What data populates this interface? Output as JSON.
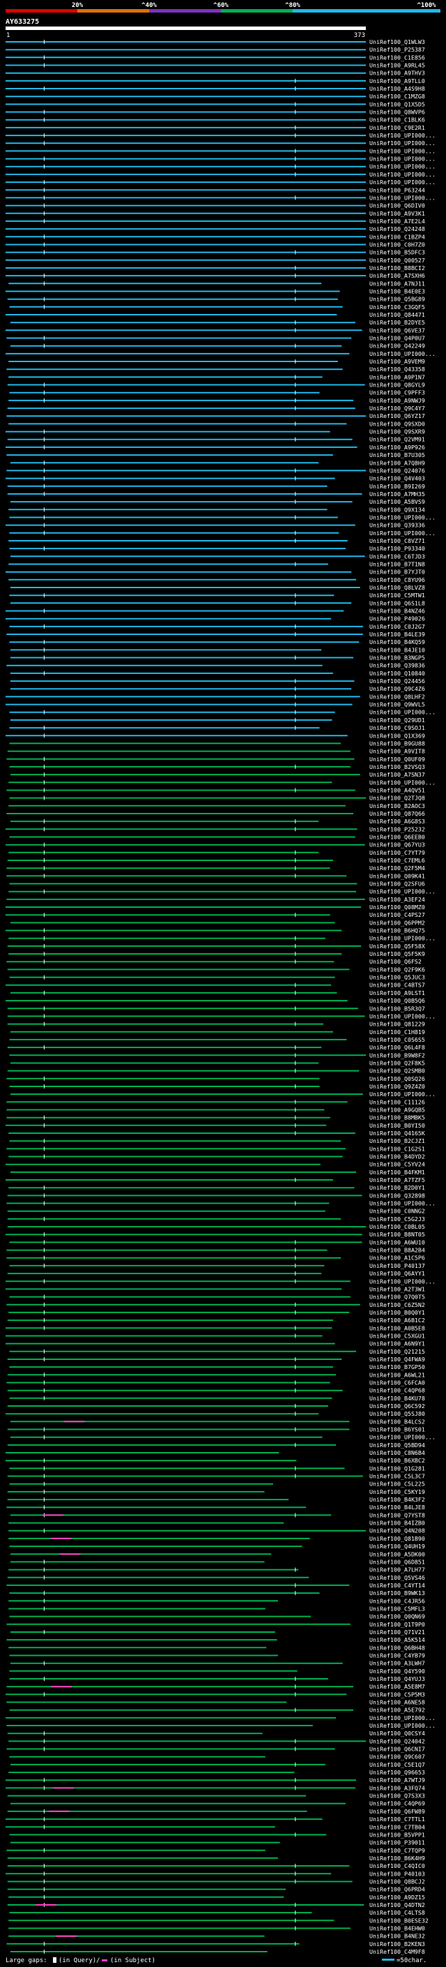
{
  "chart_data": {
    "type": "alignment-overview",
    "title": "AY633275",
    "identity_scale": {
      "labels": [
        "20%",
        "^40%",
        "^60%",
        "^80%",
        "^100%"
      ],
      "colors": [
        "#e00000",
        "#e07000",
        "#8030c0",
        "#00b050",
        "#20b8e8"
      ]
    },
    "query_range": {
      "start": "1",
      "end": "373"
    },
    "query_length": 373,
    "subject_ids": [
      "UniRef100_Q1WLW3",
      "UniRef100_P25387",
      "UniRef100_C1E856",
      "UniRef100_A9RL45",
      "UniRef100_A9THV3",
      "UniRef100_A9TLL0",
      "UniRef100_A4S9H8",
      "UniRef100_C1MZG8",
      "UniRef100_Q1X5D5",
      "UniRef100_Q8WVP6",
      "UniRef100_C1BLK6",
      "UniRef100_C9E2R1",
      "UniRef100_UPI000...",
      "UniRef100_UPI000...",
      "UniRef100_UPI000...",
      "UniRef100_UPI000...",
      "UniRef100_UPI000...",
      "UniRef100_UPI000...",
      "UniRef100_UPI000...",
      "UniRef100_P63244",
      "UniRef100_UPI000...",
      "UniRef100_Q6DIV0",
      "UniRef100_A9V3K1",
      "UniRef100_A7E2L4",
      "UniRef100_Q24248",
      "UniRef100_C1BZP4",
      "UniRef100_C0H7Z0",
      "UniRef100_B5DFC3",
      "UniRef100_Q00527",
      "UniRef100_B8BCI2",
      "UniRef100_A7SXH6",
      "UniRef100_A7NJ11",
      "UniRef100_B4E0E3",
      "UniRef100_Q5BG89",
      "UniRef100_C3GQF5",
      "UniRef100_Q84471",
      "UniRef100_B2DYE5",
      "UniRef100_Q6VE37",
      "UniRef100_Q4P0U7",
      "UniRef100_Q42249",
      "UniRef100_UPI000...",
      "UniRef100_A9VEM9",
      "UniRef100_Q43358",
      "UniRef100_A9P1N7",
      "UniRef100_Q8GYL9",
      "UniRef100_C9PFF3",
      "UniRef100_A9NWJ9",
      "UniRef100_Q9C4Y7",
      "UniRef100_Q6YZ17",
      "UniRef100_Q9SXD0",
      "UniRef100_Q9SXR9",
      "UniRef100_Q2VM91",
      "UniRef100_A9P926",
      "UniRef100_B7U305",
      "UniRef100_A7Q8H9",
      "UniRef100_Q24076",
      "UniRef100_Q4V403",
      "UniRef100_B9I269",
      "UniRef100_A7MH35",
      "UniRef100_A5BVS9",
      "UniRef100_Q9X134",
      "UniRef100_UPI000...",
      "UniRef100_Q39336",
      "UniRef100_UPI000...",
      "UniRef100_C8VZ71",
      "UniRef100_P93340",
      "UniRef100_C6TJD3",
      "UniRef100_B7T1N8",
      "UniRef100_B7YJT0",
      "UniRef100_C8YU96",
      "UniRef100_Q8LVZ8",
      "UniRef100_C5MTW1",
      "UniRef100_Q6S1L8",
      "UniRef100_B4NZ46",
      "UniRef100_P49026",
      "UniRef100_C0J2G7",
      "UniRef100_B4LE39",
      "UniRef100_B4KQ59",
      "UniRef100_B4JE10",
      "UniRef100_B3NGP5",
      "UniRef100_Q39836",
      "UniRef100_Q10840",
      "UniRef100_Q24456",
      "UniRef100_Q9C4Z6",
      "UniRef100_Q8LHF2",
      "UniRef100_Q9WVL5",
      "UniRef100_UPI000...",
      "UniRef100_Q29UD1",
      "UniRef100_C9SOJ1",
      "UniRef100_Q1X369",
      "UniRef100_B9GU88",
      "UniRef100_A9VIT8",
      "UniRef100_Q0UF09",
      "UniRef100_B2VSQ3",
      "UniRef100_A7SN37",
      "UniRef100_UPI000...",
      "UniRef100_A4QV51",
      "UniRef100_Q2TJQ8",
      "UniRef100_B2AOC3",
      "UniRef100_Q87Q66",
      "UniRef100_A6G8S3",
      "UniRef100_P25232",
      "UniRef100_Q6EEB0",
      "UniRef100_Q67YU3",
      "UniRef100_C7YT79",
      "UniRef100_C7EML6",
      "UniRef100_Q2F5M4",
      "UniRef100_Q09K41",
      "UniRef100_Q2SFU6",
      "UniRef100_UPI000...",
      "UniRef100_A3EF24",
      "UniRef100_Q08MZ0",
      "UniRef100_C4PS27",
      "UniRef100_Q6PPM2",
      "UniRef100_B6HQ75",
      "UniRef100_UPI000...",
      "UniRef100_Q5F58X",
      "UniRef100_Q5F5K9",
      "UniRef100_Q6FS2",
      "UniRef100_Q2F9K6",
      "UniRef100_Q5JUC3",
      "UniRef100_C4BTS7",
      "UniRef100_A9LST1",
      "UniRef100_Q0B5Q6",
      "UniRef100_B5R3Q7",
      "UniRef100_UPI000...",
      "UniRef100_Q81229",
      "UniRef100_C1H819",
      "UniRef100_C0S6S5",
      "UniRef100_Q6L4F8",
      "UniRef100_B9W8F2",
      "UniRef100_Q2F8K5",
      "UniRef100_Q2SMB0",
      "UniRef100_Q0SQ26",
      "UniRef100_Q9Z4Z0",
      "UniRef100_UPI000...",
      "UniRef100_C11126",
      "UniRef100_A9GQB5",
      "UniRef100_B8MBK5",
      "UniRef100_B0YI50",
      "UniRef100_Q4165K",
      "UniRef100_B2CJZ1",
      "UniRef100_C1G2S1",
      "UniRef100_B4DYD2",
      "UniRef100_C5YV24",
      "UniRef100_B4FKM1",
      "UniRef100_A7TZF5",
      "UniRef100_B2D0Y1",
      "UniRef100_Q32898",
      "UniRef100_UPI000...",
      "UniRef100_C0NNG2",
      "UniRef100_C5G2J3",
      "UniRef100_C0BL05",
      "UniRef100_B8NT05",
      "UniRef100_A6WU10",
      "UniRef100_B8A2B4",
      "UniRef100_A1C5P6",
      "UniRef100_P40137",
      "UniRef100_Q6AYY1",
      "UniRef100_UPI000...",
      "UniRef100_A2T3W1",
      "UniRef100_Q7Q0T5",
      "UniRef100_C6Z5N2",
      "UniRef100_B0Q0Y1",
      "UniRef100_A6B1C2",
      "UniRef100_A0B5E8",
      "UniRef100_C5XGU1",
      "UniRef100_A6N9Y1",
      "UniRef100_Q21215",
      "UniRef100_Q4FWA9",
      "UniRef100_B7GP50",
      "UniRef100_A6WL21",
      "UniRef100_C6FCA0",
      "UniRef100_C4QP68",
      "UniRef100_B4KU78",
      "UniRef100_Q6C592",
      "UniRef100_Q5SJ80",
      "UniRef100_B4LCS2",
      "UniRef100_B6YS01",
      "UniRef100_UPI000...",
      "UniRef100_Q5BD94",
      "UniRef100_C8N6B4",
      "UniRef100_B6XBC2",
      "UniRef100_Q1G281",
      "UniRef100_C5L3C7",
      "UniRef100_C5L225",
      "UniRef100_C5KY19",
      "UniRef100_B4K3F2",
      "UniRef100_B4LJE8",
      "UniRef100_Q7YST8",
      "UniRef100_B4IZB0",
      "UniRef100_Q4N208",
      "UniRef100_Q81B90",
      "UniRef100_Q4UH19",
      "UniRef100_A5DK00",
      "UniRef100_Q6D851",
      "UniRef100_A7LH77",
      "UniRef100_Q5VS46",
      "UniRef100_C4YT14",
      "UniRef100_B9WK13",
      "UniRef100_C4JR56",
      "UniRef100_C5MFL3",
      "UniRef100_Q0QN69",
      "UniRef100_Q1T9P0",
      "UniRef100_Q71V21",
      "UniRef100_A5K514",
      "UniRef100_Q6BH48",
      "UniRef100_C4YB79",
      "UniRef100_A3LWH7",
      "UniRef100_Q4Y590",
      "UniRef100_Q4YUJ3",
      "UniRef100_A5E8M7",
      "UniRef100_C5P5M3",
      "UniRef100_A6NE58",
      "UniRef100_A5E792",
      "UniRef100_UPI000...",
      "UniRef100_UPI000...",
      "UniRef100_Q0CSY4",
      "UniRef100_Q24042",
      "UniRef100_Q6CNI7",
      "UniRef100_Q9C607",
      "UniRef100_C5E1Q7",
      "UniRef100_Q96653",
      "UniRef100_A7WTJ9",
      "UniRef100_A3FQ74",
      "UniRef100_Q7S3X3",
      "UniRef100_C4QP69",
      "UniRef100_Q6FW89",
      "UniRef100_C7TTL1",
      "UniRef100_C7TB04",
      "UniRef100_B5VPP1",
      "UniRef100_P39011",
      "UniRef100_C7TQP9",
      "UniRef100_B6K4H9",
      "UniRef100_C4QIC0",
      "UniRef100_P40103",
      "UniRef100_Q8BCJ2",
      "UniRef100_Q6PRD4",
      "UniRef100_A9DZ15",
      "UniRef100_Q4DTN2",
      "UniRef100_C4LTS8",
      "UniRef100_B0ESE32",
      "UniRef100_B4EHW0",
      "UniRef100_B4NE32",
      "UniRef100_B2KEN3",
      "UniRef100_C4M9F8"
    ],
    "legend": {
      "gaps_text": "Large gaps:",
      "query_gap_text": "(in Query)/",
      "subject_gap_text": "(in Subject)",
      "scale_text": "=50char."
    }
  }
}
